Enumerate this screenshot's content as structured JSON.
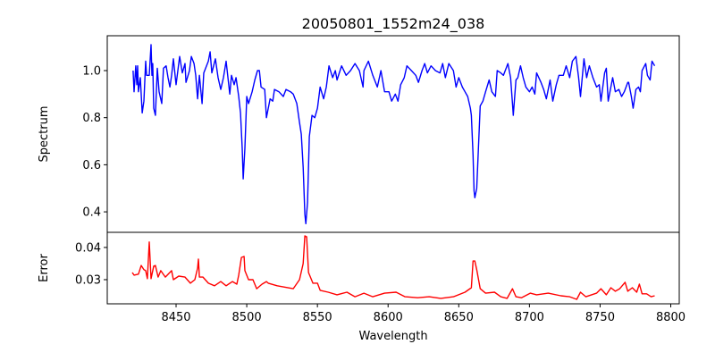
{
  "chart_data": [
    {
      "type": "line",
      "title": "20050801_1552m24_038",
      "xlabel": "",
      "ylabel": "Spectrum",
      "xlim": [
        8401.3,
        8806.0
      ],
      "ylim": [
        0.313,
        1.148
      ],
      "yticks": [
        0.4,
        0.6,
        0.8,
        1.0
      ],
      "ytick_labels": [
        "0.4",
        "0.6",
        "0.8",
        "1.0"
      ],
      "grid": false,
      "color": "#0000ff",
      "series": [
        {
          "name": "Spectrum",
          "x": [
            8419.6,
            8420.3,
            8421.5,
            8422.2,
            8422.8,
            8423.4,
            8424.7,
            8426.0,
            8427.2,
            8428.5,
            8429.1,
            8431.0,
            8432.3,
            8432.9,
            8433.5,
            8434.2,
            8435.4,
            8436.7,
            8438.0,
            8439.9,
            8441.1,
            8443.0,
            8444.3,
            8445.6,
            8446.8,
            8448.1,
            8450.0,
            8452.5,
            8454.4,
            8456.3,
            8457.0,
            8459.5,
            8460.8,
            8462.7,
            8463.9,
            8465.2,
            8466.5,
            8468.4,
            8469.6,
            8472.8,
            8474.1,
            8475.3,
            8477.8,
            8479.7,
            8481.6,
            8483.5,
            8485.4,
            8488.0,
            8489.2,
            8491.1,
            8492.4,
            8494.3,
            8495.6,
            8496.8,
            8497.5,
            8498.7,
            8500.0,
            8501.3,
            8503.8,
            8505.7,
            8507.6,
            8508.9,
            8510.1,
            8512.7,
            8513.9,
            8516.5,
            8518.4,
            8519.6,
            8522.8,
            8525.9,
            8527.8,
            8531.0,
            8532.9,
            8535.4,
            8537.3,
            8538.6,
            8539.9,
            8541.1,
            8541.8,
            8543.0,
            8544.3,
            8546.2,
            8548.1,
            8550.0,
            8551.9,
            8554.4,
            8556.3,
            8558.2,
            8560.8,
            8562.7,
            8563.9,
            8567.1,
            8570.3,
            8573.4,
            8576.6,
            8579.7,
            8582.3,
            8582.9,
            8586.1,
            8589.2,
            8592.4,
            8594.9,
            8597.5,
            8600.6,
            8602.5,
            8605.1,
            8607.0,
            8608.9,
            8611.4,
            8613.3,
            8616.5,
            8619.6,
            8621.5,
            8624.0,
            8625.9,
            8627.8,
            8630.4,
            8633.5,
            8636.7,
            8638.6,
            8640.5,
            8643.0,
            8646.2,
            8648.1,
            8650.0,
            8652.5,
            8654.4,
            8656.3,
            8658.2,
            8658.9,
            8660.1,
            8660.8,
            8661.4,
            8662.7,
            8663.9,
            8665.2,
            8667.1,
            8669.0,
            8671.5,
            8673.4,
            8675.9,
            8677.2,
            8679.7,
            8681.6,
            8684.8,
            8686.7,
            8688.0,
            8688.6,
            8690.5,
            8691.8,
            8693.7,
            8695.6,
            8697.5,
            8700.0,
            8701.9,
            8703.8,
            8705.1,
            8708.2,
            8710.1,
            8712.0,
            8714.6,
            8716.5,
            8719.0,
            8720.9,
            8724.0,
            8726.0,
            8728.5,
            8730.4,
            8732.9,
            8734.8,
            8736.1,
            8738.6,
            8740.5,
            8742.4,
            8744.9,
            8747.5,
            8749.4,
            8750.6,
            8753.2,
            8754.4,
            8755.7,
            8757.6,
            8758.9,
            8760.8,
            8763.3,
            8765.2,
            8767.1,
            8769.6,
            8770.2,
            8772.1,
            8773.4,
            8775.3,
            8777.2,
            8778.5,
            8779.7,
            8782.3,
            8783.5,
            8785.4,
            8786.7,
            8788.6
          ],
          "y": [
            1.0,
            0.91,
            1.02,
            0.94,
            1.02,
            0.91,
            0.97,
            0.82,
            0.87,
            1.04,
            0.98,
            0.98,
            1.11,
            0.98,
            1.03,
            0.84,
            0.81,
            1.01,
            0.91,
            0.86,
            1.01,
            1.02,
            0.97,
            0.93,
            0.98,
            1.05,
            0.94,
            1.06,
            0.99,
            1.03,
            0.95,
            1.0,
            1.06,
            1.03,
            0.98,
            0.88,
            0.98,
            0.86,
            0.99,
            1.04,
            1.08,
            0.99,
            1.05,
            0.97,
            0.92,
            0.97,
            1.04,
            0.9,
            0.98,
            0.94,
            0.97,
            0.89,
            0.82,
            0.67,
            0.54,
            0.67,
            0.89,
            0.86,
            0.91,
            0.96,
            1.0,
            1.0,
            0.93,
            0.92,
            0.8,
            0.88,
            0.87,
            0.92,
            0.91,
            0.89,
            0.92,
            0.91,
            0.9,
            0.86,
            0.78,
            0.73,
            0.59,
            0.39,
            0.35,
            0.44,
            0.72,
            0.81,
            0.8,
            0.84,
            0.93,
            0.88,
            0.93,
            1.02,
            0.97,
            1.0,
            0.96,
            1.02,
            0.98,
            1.0,
            1.03,
            1.0,
            0.93,
            1.0,
            1.04,
            0.98,
            0.93,
            1.0,
            0.91,
            0.91,
            0.87,
            0.9,
            0.87,
            0.94,
            0.97,
            1.02,
            1.0,
            0.98,
            0.95,
            1.0,
            1.03,
            0.99,
            1.02,
            1.0,
            0.99,
            1.03,
            0.97,
            1.03,
            1.0,
            0.93,
            0.97,
            0.93,
            0.91,
            0.89,
            0.84,
            0.81,
            0.64,
            0.49,
            0.46,
            0.5,
            0.67,
            0.85,
            0.87,
            0.91,
            0.96,
            0.91,
            0.89,
            1.0,
            0.99,
            0.98,
            1.03,
            0.97,
            0.86,
            0.81,
            0.96,
            0.97,
            1.02,
            0.97,
            0.93,
            0.91,
            0.93,
            0.9,
            0.99,
            0.95,
            0.92,
            0.88,
            0.96,
            0.87,
            0.94,
            0.98,
            0.98,
            1.02,
            0.97,
            1.04,
            1.06,
            0.97,
            0.89,
            1.05,
            0.97,
            1.02,
            0.97,
            0.93,
            0.94,
            0.87,
            0.99,
            1.01,
            0.87,
            0.93,
            0.97,
            0.91,
            0.92,
            0.89,
            0.91,
            0.95,
            0.95,
            0.89,
            0.84,
            0.92,
            0.93,
            0.91,
            1.0,
            1.03,
            0.98,
            0.96,
            1.04,
            1.02
          ]
        }
      ]
    },
    {
      "type": "line",
      "title": "",
      "xlabel": "Wavelength",
      "ylabel": "Error",
      "xlim": [
        8401.3,
        8806.0
      ],
      "ylim": [
        0.0225,
        0.0447
      ],
      "xticks": [
        8450,
        8500,
        8550,
        8600,
        8650,
        8700,
        8750,
        8800
      ],
      "xtick_labels": [
        "8450",
        "8500",
        "8550",
        "8600",
        "8650",
        "8700",
        "8750",
        "8800"
      ],
      "yticks": [
        0.03,
        0.04
      ],
      "ytick_labels": [
        "0.03",
        "0.04"
      ],
      "grid": false,
      "color": "#ff0000",
      "series": [
        {
          "name": "Error",
          "x": [
            8419.0,
            8420.3,
            8423.4,
            8425.3,
            8427.2,
            8428.5,
            8429.7,
            8431.0,
            8432.3,
            8434.2,
            8435.4,
            8437.3,
            8439.2,
            8442.4,
            8446.8,
            8448.1,
            8451.9,
            8456.3,
            8460.1,
            8463.3,
            8465.2,
            8465.8,
            8466.5,
            8469.0,
            8472.8,
            8477.2,
            8481.6,
            8485.4,
            8489.9,
            8493.0,
            8494.3,
            8496.2,
            8498.1,
            8498.7,
            8501.3,
            8504.4,
            8507.0,
            8510.8,
            8513.9,
            8515.2,
            8521.5,
            8532.9,
            8537.3,
            8539.9,
            8541.1,
            8542.4,
            8543.7,
            8546.8,
            8550.0,
            8551.9,
            8557.6,
            8563.9,
            8570.9,
            8576.6,
            8582.9,
            8589.2,
            8597.5,
            8605.7,
            8612.0,
            8620.9,
            8629.1,
            8637.3,
            8646.2,
            8654.4,
            8658.9,
            8660.1,
            8661.4,
            8662.7,
            8665.2,
            8669.0,
            8675.3,
            8679.7,
            8684.2,
            8688.0,
            8690.5,
            8694.3,
            8700.6,
            8705.1,
            8713.3,
            8722.2,
            8728.5,
            8733.5,
            8736.1,
            8739.9,
            8747.5,
            8750.6,
            8754.4,
            8757.6,
            8760.8,
            8763.9,
            8767.7,
            8769.6,
            8772.8,
            8775.9,
            8777.8,
            8779.7,
            8782.9,
            8786.1,
            8788.6
          ],
          "y": [
            0.0322,
            0.0314,
            0.0317,
            0.0344,
            0.0331,
            0.0328,
            0.0303,
            0.0417,
            0.0303,
            0.0342,
            0.0344,
            0.0308,
            0.0328,
            0.0308,
            0.0328,
            0.03,
            0.0311,
            0.0308,
            0.0289,
            0.03,
            0.0336,
            0.0364,
            0.0308,
            0.0308,
            0.0289,
            0.0281,
            0.0294,
            0.0281,
            0.0294,
            0.0286,
            0.0314,
            0.0369,
            0.0372,
            0.0328,
            0.03,
            0.03,
            0.0272,
            0.0286,
            0.0294,
            0.0289,
            0.0281,
            0.0272,
            0.03,
            0.035,
            0.0436,
            0.0433,
            0.0322,
            0.0289,
            0.0289,
            0.0267,
            0.0261,
            0.0253,
            0.0261,
            0.0247,
            0.0258,
            0.0247,
            0.0258,
            0.0261,
            0.0247,
            0.0244,
            0.0247,
            0.0242,
            0.0247,
            0.0261,
            0.0275,
            0.0358,
            0.0358,
            0.0331,
            0.0272,
            0.0258,
            0.0261,
            0.0247,
            0.0242,
            0.0272,
            0.0247,
            0.0244,
            0.0258,
            0.0253,
            0.0258,
            0.025,
            0.0247,
            0.0239,
            0.0261,
            0.0247,
            0.0258,
            0.0272,
            0.0253,
            0.0275,
            0.0264,
            0.0272,
            0.0292,
            0.0264,
            0.0275,
            0.0261,
            0.0286,
            0.0256,
            0.0256,
            0.0247,
            0.025
          ]
        }
      ]
    }
  ]
}
